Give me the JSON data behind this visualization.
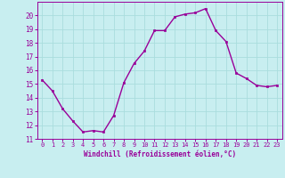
{
  "x": [
    0,
    1,
    2,
    3,
    4,
    5,
    6,
    7,
    8,
    9,
    10,
    11,
    12,
    13,
    14,
    15,
    16,
    17,
    18,
    19,
    20,
    21,
    22,
    23
  ],
  "y": [
    15.3,
    14.5,
    13.2,
    12.3,
    11.5,
    11.6,
    11.5,
    12.7,
    15.1,
    16.5,
    17.4,
    18.9,
    18.9,
    19.9,
    20.1,
    20.2,
    20.5,
    18.9,
    18.1,
    15.8,
    15.4,
    14.9,
    14.8,
    14.9
  ],
  "line_color": "#990099",
  "marker": "s",
  "marker_size": 2,
  "bg_color": "#c8eef0",
  "grid_color": "#aadddd",
  "xlabel": "Windchill (Refroidissement éolien,°C)",
  "xlabel_color": "#990099",
  "tick_color": "#990099",
  "ylim": [
    11,
    21
  ],
  "xlim": [
    -0.5,
    23.5
  ],
  "yticks": [
    11,
    12,
    13,
    14,
    15,
    16,
    17,
    18,
    19,
    20
  ],
  "xticks": [
    0,
    1,
    2,
    3,
    4,
    5,
    6,
    7,
    8,
    9,
    10,
    11,
    12,
    13,
    14,
    15,
    16,
    17,
    18,
    19,
    20,
    21,
    22,
    23
  ],
  "line_width": 1.0,
  "ytick_fontsize": 5.5,
  "xtick_fontsize": 5.0,
  "xlabel_fontsize": 5.5
}
